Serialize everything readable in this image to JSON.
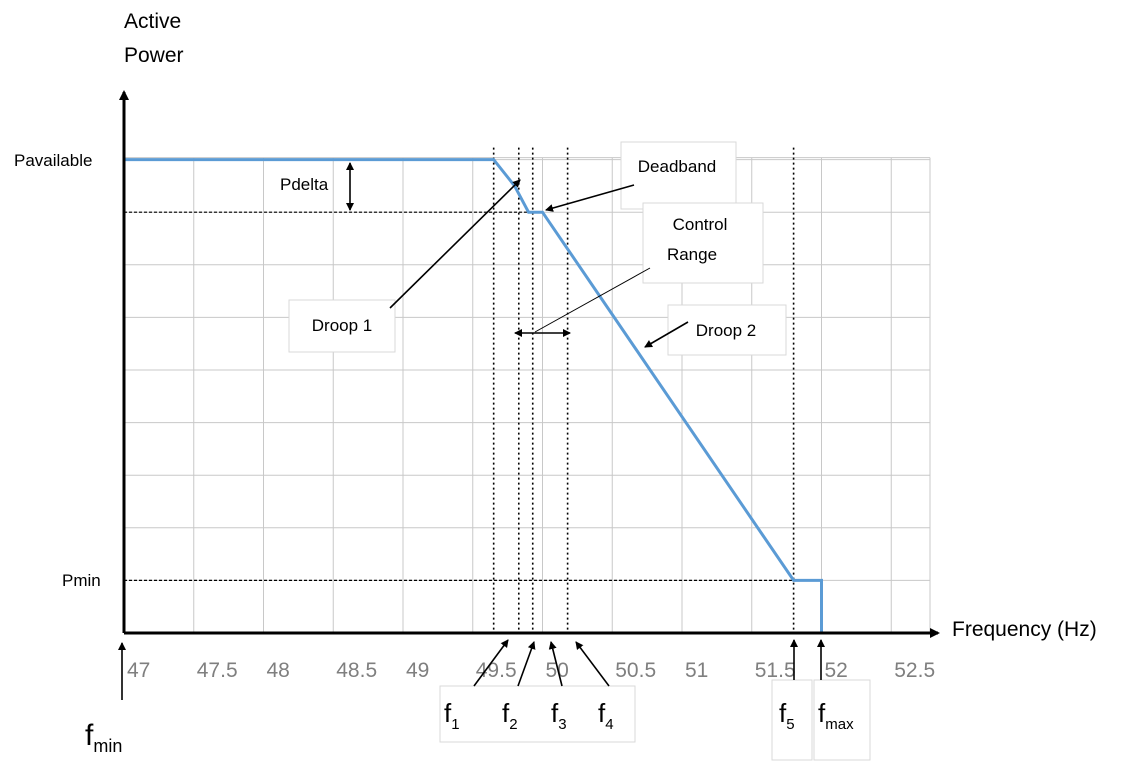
{
  "chart_data": {
    "type": "line",
    "title": "",
    "xlabel": "Frequency (Hz)",
    "ylabel_line1": "Active",
    "ylabel_line2": "Power",
    "xlim": [
      47,
      52.8
    ],
    "ylim": [
      0,
      9
    ],
    "x_ticks": [
      47,
      47.5,
      48,
      48.5,
      49,
      49.5,
      50,
      50.5,
      51,
      51.5,
      52,
      52.5
    ],
    "x_tick_labels": [
      "47",
      "47.5",
      "48",
      "48.5",
      "49",
      "49.5",
      "50",
      "50.5",
      "51",
      "51.5",
      "52",
      "52.5"
    ],
    "grid": true,
    "y_levels": {
      "pavailable": {
        "label": "Pavailable",
        "value": 9
      },
      "pdelta_level": {
        "value": 8
      },
      "pmin": {
        "label": "Pmin",
        "value": 1
      }
    },
    "series": [
      {
        "color": "#5b9bd5",
        "x": [
          47,
          49.65,
          49.8,
          49.9,
          50.0,
          51.8,
          52.0,
          52.0
        ],
        "y": [
          9,
          9,
          8.5,
          8,
          8,
          1,
          1,
          0
        ]
      }
    ],
    "frequency_markers": [
      {
        "x": 49.65,
        "name": "f",
        "sub": "1"
      },
      {
        "x": 49.83,
        "name": "f",
        "sub": "2"
      },
      {
        "x": 49.93,
        "name": "f",
        "sub": "3"
      },
      {
        "x": 50.18,
        "name": "f",
        "sub": "4"
      },
      {
        "x": 51.8,
        "name": "f",
        "sub": "5"
      },
      {
        "x": 52.0,
        "name": "f",
        "sub": "max"
      },
      {
        "x": 47.0,
        "name": "f",
        "sub": "min"
      }
    ],
    "annotations": {
      "pdelta": "Pdelta",
      "deadband": "Deadband",
      "control_range_line1": "Control",
      "control_range_line2": "Range",
      "droop1": "Droop 1",
      "droop2": "Droop 2"
    },
    "colors": {
      "line": "#5b9bd5",
      "grid": "#c8c8c8",
      "axis": "#000000",
      "tick_text": "#7f7f7f"
    }
  }
}
